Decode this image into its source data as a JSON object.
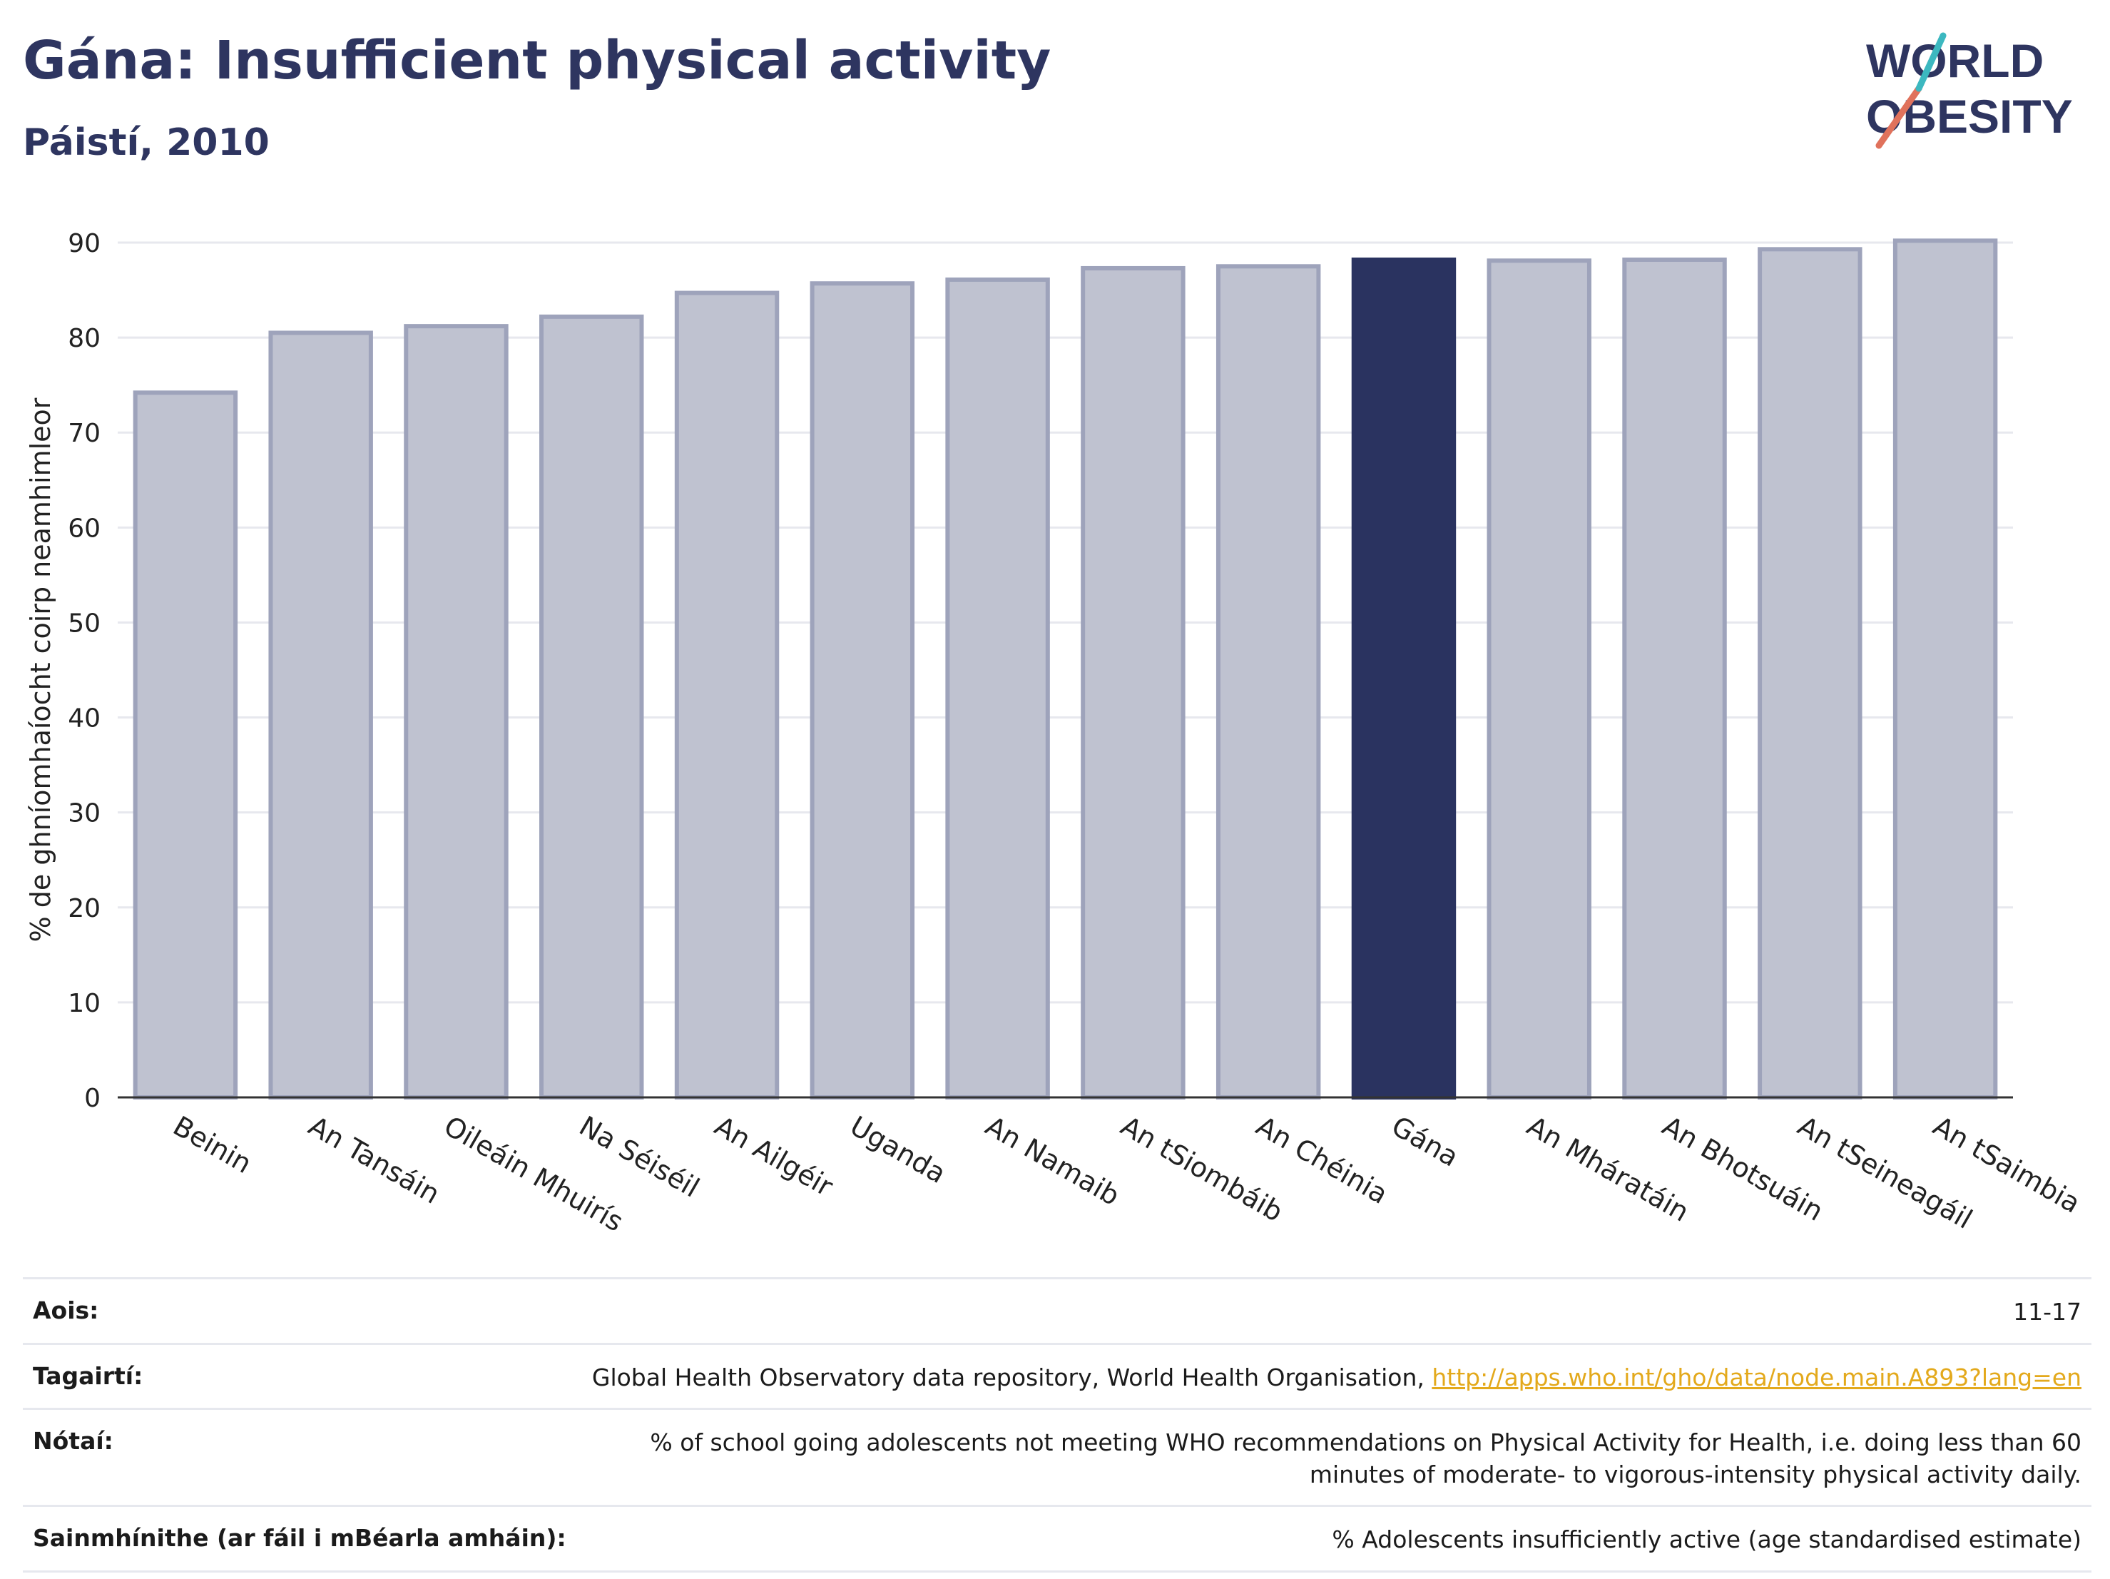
{
  "header": {
    "title": "Gána: Insufficient physical activity",
    "subtitle": "Páistí, 2010"
  },
  "logo": {
    "line1": "WORLD",
    "line2": "OBESITY"
  },
  "colors": {
    "bar": "#bfc2d0",
    "bar_stroke": "#9ea3bb",
    "highlight": "#2a3360",
    "grid": "#e7e8ee",
    "title": "#2e3560"
  },
  "chart_data": {
    "type": "bar",
    "ylabel": "% de ghníomhaíocht coirp neamhimleor",
    "xlabel": "",
    "ylim": [
      0,
      90
    ],
    "yticks": [
      0,
      10,
      20,
      30,
      40,
      50,
      60,
      70,
      80,
      90
    ],
    "grid": true,
    "highlight": "Gána",
    "categories": [
      "Beinin",
      "An Tansáin",
      "Oileáin Mhuirís",
      "Na Séiséil",
      "An Ailgéir",
      "Uganda",
      "An Namaib",
      "An tSiombáib",
      "An Chéinia",
      "Gána",
      "An Mháratáin",
      "An Bhotsuáin",
      "An tSeineagáil",
      "An tSaimbia"
    ],
    "values": [
      74.2,
      80.5,
      81.2,
      82.2,
      84.7,
      85.7,
      86.1,
      87.3,
      87.5,
      88.2,
      88.1,
      88.2,
      89.3,
      90.2
    ]
  },
  "meta": [
    {
      "label": "Aois:",
      "value": "11-17"
    },
    {
      "label": "Tagairtí:",
      "value": "Global Health Observatory data repository, World Health Organisation, ",
      "link": "http://apps.who.int/gho/data/node.main.A893?lang=en"
    },
    {
      "label": "Nótaí:",
      "value": "% of school going adolescents not meeting WHO recommendations on Physical Activity for Health, i.e. doing less than 60 minutes of moderate- to vigorous-intensity physical activity daily."
    },
    {
      "label": "Sainmhínithe (ar fáil i mBéarla amháin):",
      "value": "% Adolescents insufficiently active (age standardised estimate)"
    }
  ]
}
